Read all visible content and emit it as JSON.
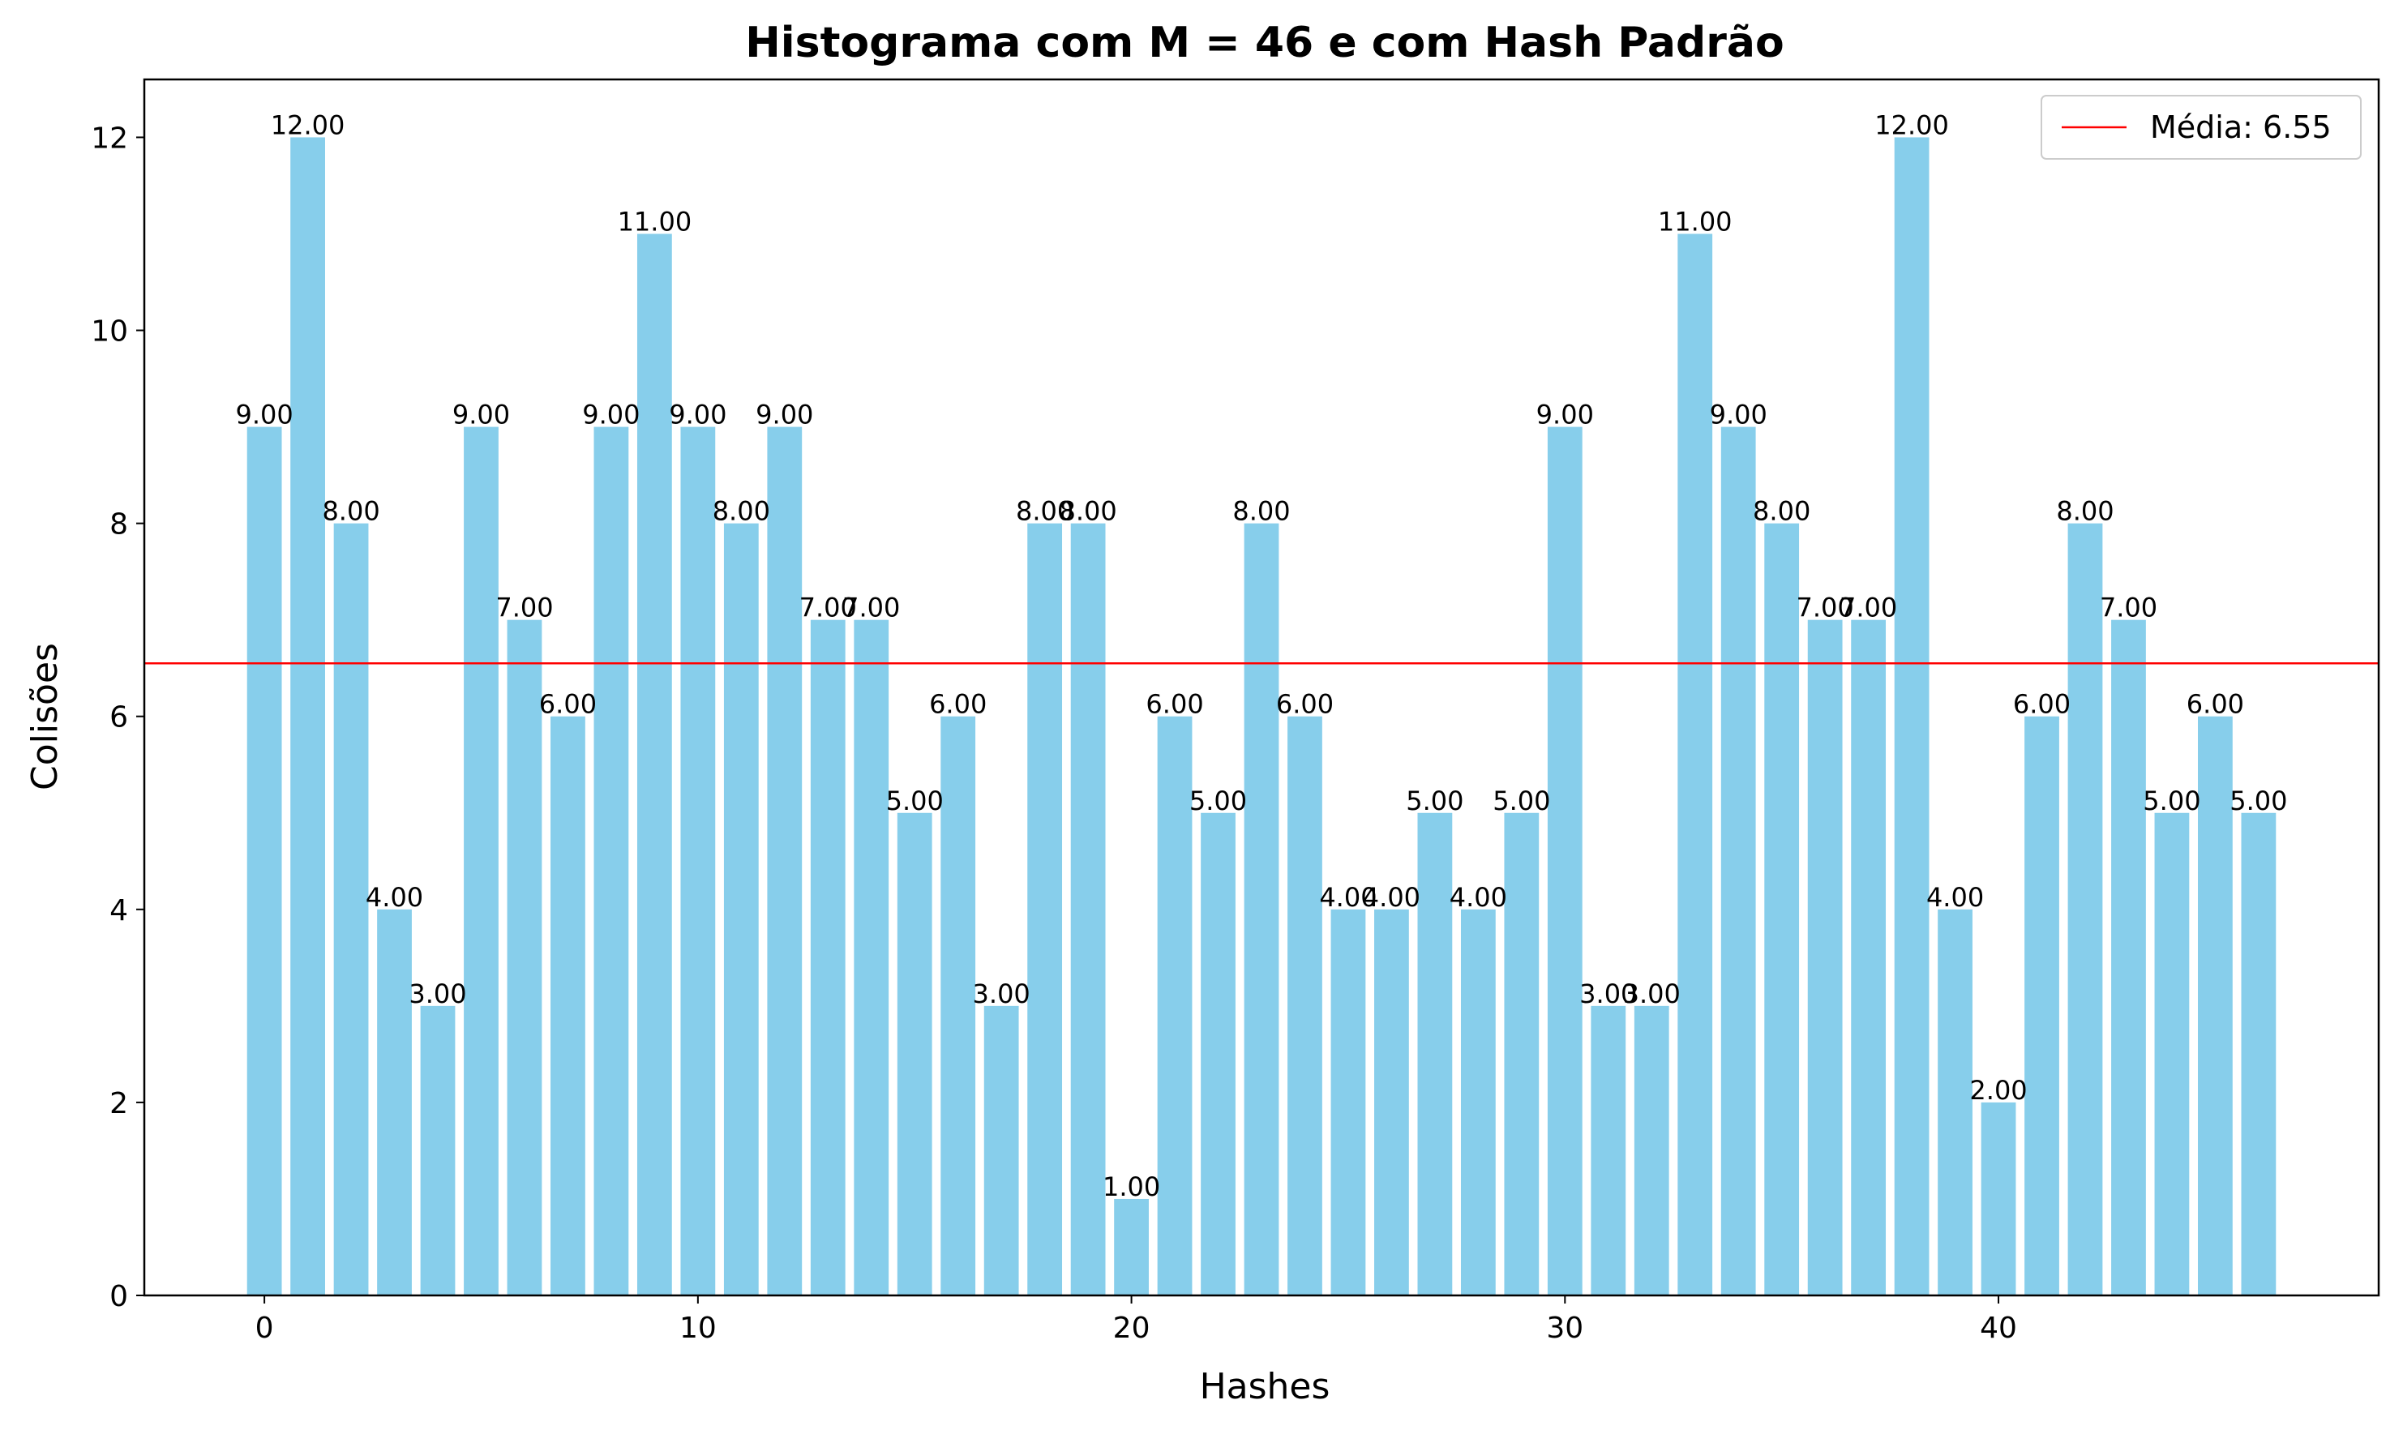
{
  "chart_data": {
    "type": "bar",
    "title": "Histograma com M = 46 e com Hash Padrão",
    "xlabel": "Hashes",
    "ylabel": "Colisões",
    "x": [
      0,
      1,
      2,
      3,
      4,
      5,
      6,
      7,
      8,
      9,
      10,
      11,
      12,
      13,
      14,
      15,
      16,
      17,
      18,
      19,
      20,
      21,
      22,
      23,
      24,
      25,
      26,
      27,
      28,
      29,
      30,
      31,
      32,
      33,
      34,
      35,
      36,
      37,
      38,
      39,
      40,
      41,
      42,
      43,
      44,
      45,
      46
    ],
    "values": [
      9,
      12,
      8,
      4,
      3,
      9,
      7,
      6,
      9,
      11,
      9,
      8,
      9,
      7,
      7,
      5,
      6,
      3,
      8,
      8,
      1,
      6,
      5,
      8,
      6,
      4,
      4,
      5,
      4,
      5,
      9,
      3,
      3,
      11,
      9,
      8,
      7,
      7,
      12,
      4,
      2,
      6,
      8,
      7,
      5,
      6,
      5
    ],
    "value_labels": [
      "9.00",
      "12.00",
      "8.00",
      "4.00",
      "3.00",
      "9.00",
      "7.00",
      "6.00",
      "9.00",
      "11.00",
      "9.00",
      "8.00",
      "9.00",
      "7.00",
      "7.00",
      "5.00",
      "6.00",
      "3.00",
      "8.00",
      "8.00",
      "1.00",
      "6.00",
      "5.00",
      "8.00",
      "6.00",
      "4.00",
      "4.00",
      "5.00",
      "4.00",
      "5.00",
      "9.00",
      "3.00",
      "3.00",
      "11.00",
      "9.00",
      "8.00",
      "7.00",
      "7.00",
      "12.00",
      "4.00",
      "2.00",
      "6.00",
      "8.00",
      "7.00",
      "5.00",
      "6.00",
      "5.00"
    ],
    "mean_line": {
      "label": "Média: 6.55",
      "value": 6.55,
      "color": "#ff0000"
    },
    "bar_color": "#87ceeb",
    "xlim": [
      -2.77,
      48.77
    ],
    "ylim": [
      0,
      12.6
    ],
    "xticks": [
      0,
      10,
      20,
      30,
      40
    ],
    "xtick_labels": [
      "0",
      "10",
      "20",
      "30",
      "40"
    ],
    "yticks": [
      0,
      2,
      4,
      6,
      8,
      10,
      12
    ],
    "ytick_labels": [
      "0",
      "2",
      "4",
      "6",
      "8",
      "10",
      "12"
    ],
    "grid": false,
    "legend_position": "top-right"
  }
}
